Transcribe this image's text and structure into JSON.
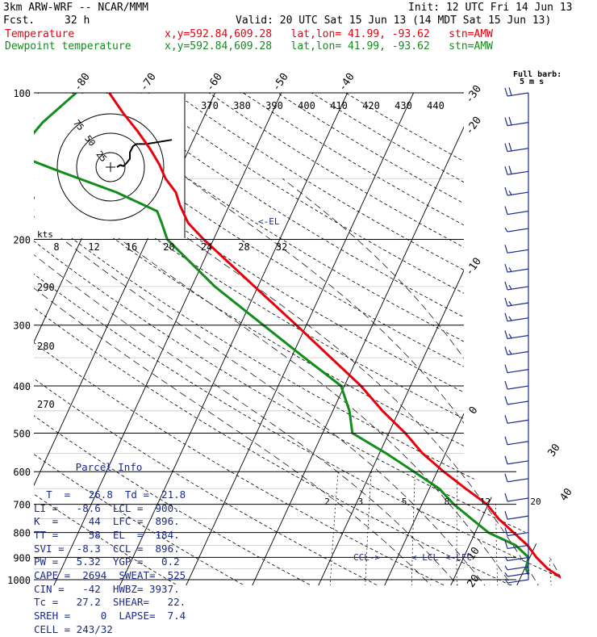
{
  "header": {
    "model": "3km ARW-WRF -- NCAR/MMM",
    "init": "Init: 12 UTC Fri 14 Jun 13",
    "fcst_label": "Fcst.",
    "fcst_value": "32 h",
    "valid": "Valid: 20 UTC Sat 15 Jun 13 (14 MDT Sat 15 Jun 13)",
    "temp_label": "Temperature",
    "dewp_label": "Dewpoint temperature",
    "temp_meta": "x,y=592.84,609.28   lat,lon= 41.99, -93.62   stn=AMW",
    "dewp_meta": "x,y=592.84,609.28   lat,lon= 41.99, -93.62   stn=AMW"
  },
  "barb_label": "Full barb:",
  "barb_unit": "5 m s",
  "hodo_unit": "kts",
  "el_label": "<-EL",
  "ccl_label": "CCL->",
  "lcl_label": "< LCL",
  "lfc_label": "<-LFC",
  "parcel": {
    "title": "Parcel Info",
    "rows": [
      "T  =   26.8  Td =  21.8",
      "LI =   -8.6  LCL =  900.",
      "K  =     44  LFC =  896.",
      "TT =     58  EL  =  184.",
      "SVI =  -8.3  CCL =  896.",
      "PW =   5.32  YGP =   0.2",
      "CAPE =  2694  SWEAT=  525",
      "CIN =   -42  HWBZ= 3937.",
      "Tc =   27.2  SHEAR=   22.",
      "SREH =     0  LAPSE=  7.4",
      "CELL = 243/32"
    ]
  },
  "colors": {
    "temperature": "#e8000c",
    "dewpoint": "#128c1a",
    "barbs": "#1a2a8c",
    "parcel": "#1a2a8c"
  },
  "chart_data": {
    "type": "line",
    "chart_kind": "skew-T log-p sounding",
    "y_scale": "log",
    "pressure_levels": [
      100,
      200,
      300,
      400,
      500,
      600,
      700,
      800,
      900,
      1000
    ],
    "isotherm_labels": [
      -80,
      -70,
      -60,
      -50,
      -40,
      -30,
      -20,
      -10,
      0,
      10,
      20,
      30,
      40
    ],
    "theta_labels": [
      370,
      380,
      390,
      400,
      410,
      420,
      430,
      440
    ],
    "theta_left_labels": [
      290,
      280,
      270
    ],
    "mixing_ratio_labels": [
      2,
      3,
      5,
      8,
      12,
      20
    ],
    "hodograph_rings": [
      25,
      50,
      75
    ],
    "hodograph_speed_labels": [
      8,
      12,
      16,
      20,
      24,
      28,
      32
    ],
    "series": [
      {
        "name": "Temperature",
        "points": [
          {
            "p": 1000,
            "t": 26.8
          },
          {
            "p": 950,
            "t": 23.5
          },
          {
            "p": 900,
            "t": 21.0
          },
          {
            "p": 850,
            "t": 18.8
          },
          {
            "p": 800,
            "t": 15.8
          },
          {
            "p": 750,
            "t": 12.6
          },
          {
            "p": 700,
            "t": 9.8
          },
          {
            "p": 650,
            "t": 5.5
          },
          {
            "p": 600,
            "t": 1.0
          },
          {
            "p": 550,
            "t": -3.5
          },
          {
            "p": 500,
            "t": -7.5
          },
          {
            "p": 450,
            "t": -12.5
          },
          {
            "p": 400,
            "t": -17.5
          },
          {
            "p": 350,
            "t": -24.0
          },
          {
            "p": 300,
            "t": -31.5
          },
          {
            "p": 250,
            "t": -40.5
          },
          {
            "p": 200,
            "t": -51.5
          },
          {
            "p": 185,
            "t": -55.0
          },
          {
            "p": 170,
            "t": -57.5
          },
          {
            "p": 160,
            "t": -59.0
          },
          {
            "p": 150,
            "t": -61.5
          },
          {
            "p": 140,
            "t": -63.5
          },
          {
            "p": 130,
            "t": -66.0
          },
          {
            "p": 120,
            "t": -69.0
          },
          {
            "p": 110,
            "t": -72.5
          },
          {
            "p": 100,
            "t": -76.0
          }
        ]
      },
      {
        "name": "Dewpoint temperature",
        "points": [
          {
            "p": 975,
            "t": 21.0
          },
          {
            "p": 950,
            "t": 20.2
          },
          {
            "p": 900,
            "t": 19.8
          },
          {
            "p": 850,
            "t": 17.0
          },
          {
            "p": 800,
            "t": 12.0
          },
          {
            "p": 750,
            "t": 8.5
          },
          {
            "p": 700,
            "t": 4.8
          },
          {
            "p": 650,
            "t": 1.5
          },
          {
            "p": 600,
            "t": -3.5
          },
          {
            "p": 550,
            "t": -9.0
          },
          {
            "p": 500,
            "t": -15.5
          },
          {
            "p": 450,
            "t": -17.5
          },
          {
            "p": 400,
            "t": -20.5
          },
          {
            "p": 350,
            "t": -28.0
          },
          {
            "p": 300,
            "t": -36.5
          },
          {
            "p": 250,
            "t": -46.5
          },
          {
            "p": 200,
            "t": -57.0
          },
          {
            "p": 185,
            "t": -59.0
          },
          {
            "p": 175,
            "t": -60.5
          },
          {
            "p": 160,
            "t": -68.0
          },
          {
            "p": 145,
            "t": -78.0
          },
          {
            "p": 135,
            "t": -85.0
          },
          {
            "p": 125,
            "t": -85.0
          },
          {
            "p": 115,
            "t": -84.0
          },
          {
            "p": 100,
            "t": -81.0
          }
        ]
      }
    ],
    "wind_barbs": [
      {
        "p": 100,
        "speed": 20,
        "dir": 250
      },
      {
        "p": 115,
        "speed": 20,
        "dir": 250
      },
      {
        "p": 130,
        "speed": 20,
        "dir": 255
      },
      {
        "p": 145,
        "speed": 20,
        "dir": 255
      },
      {
        "p": 160,
        "speed": 15,
        "dir": 260
      },
      {
        "p": 175,
        "speed": 10,
        "dir": 270
      },
      {
        "p": 190,
        "speed": 5,
        "dir": 280
      },
      {
        "p": 210,
        "speed": 10,
        "dir": 270
      },
      {
        "p": 230,
        "speed": 15,
        "dir": 265
      },
      {
        "p": 250,
        "speed": 15,
        "dir": 260
      },
      {
        "p": 270,
        "speed": 15,
        "dir": 255
      },
      {
        "p": 290,
        "speed": 15,
        "dir": 255
      },
      {
        "p": 315,
        "speed": 15,
        "dir": 250
      },
      {
        "p": 340,
        "speed": 15,
        "dir": 250
      },
      {
        "p": 370,
        "speed": 10,
        "dir": 250
      },
      {
        "p": 400,
        "speed": 10,
        "dir": 245
      },
      {
        "p": 430,
        "speed": 10,
        "dir": 245
      },
      {
        "p": 470,
        "speed": 10,
        "dir": 245
      },
      {
        "p": 520,
        "speed": 10,
        "dir": 240
      },
      {
        "p": 570,
        "speed": 10,
        "dir": 240
      },
      {
        "p": 620,
        "speed": 10,
        "dir": 235
      },
      {
        "p": 680,
        "speed": 10,
        "dir": 235
      },
      {
        "p": 740,
        "speed": 10,
        "dir": 230
      },
      {
        "p": 800,
        "speed": 10,
        "dir": 225
      },
      {
        "p": 850,
        "speed": 10,
        "dir": 220
      },
      {
        "p": 900,
        "speed": 5,
        "dir": 210
      },
      {
        "p": 940,
        "speed": 5,
        "dir": 200
      },
      {
        "p": 970,
        "speed": 5,
        "dir": 190
      },
      {
        "p": 1000,
        "speed": 5,
        "dir": 180
      }
    ],
    "hodograph": [
      {
        "u": 0.0,
        "v": 0.0
      },
      {
        "u": 2,
        "v": 2
      },
      {
        "u": 4,
        "v": 1
      },
      {
        "u": 6,
        "v": 4
      },
      {
        "u": 8,
        "v": 8
      },
      {
        "u": 8,
        "v": 14
      },
      {
        "u": 10,
        "v": 20
      },
      {
        "u": 12,
        "v": 22
      },
      {
        "u": 18,
        "v": 22
      },
      {
        "u": 26,
        "v": 24
      },
      {
        "u": 34,
        "v": 26
      }
    ]
  }
}
